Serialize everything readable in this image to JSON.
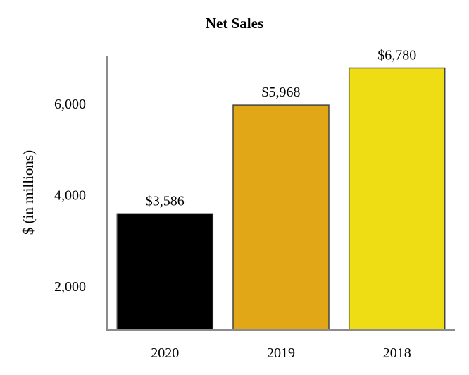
{
  "chart_data": {
    "type": "bar",
    "title": "Net Sales",
    "ylabel": "$ (in millions)",
    "xlabel": "",
    "categories": [
      "2020",
      "2019",
      "2018"
    ],
    "values": [
      3586,
      5968,
      6780
    ],
    "data_labels": [
      "$3,586",
      "$5,968",
      "$6,780"
    ],
    "colors": [
      "#000000",
      "#e2a716",
      "#eedc14"
    ],
    "yticks": [
      2000,
      4000,
      6000
    ],
    "ytick_labels": [
      "2,000",
      "4,000",
      "6,000"
    ],
    "ylim": [
      1000,
      7000
    ],
    "grid": false,
    "legend": "none"
  }
}
